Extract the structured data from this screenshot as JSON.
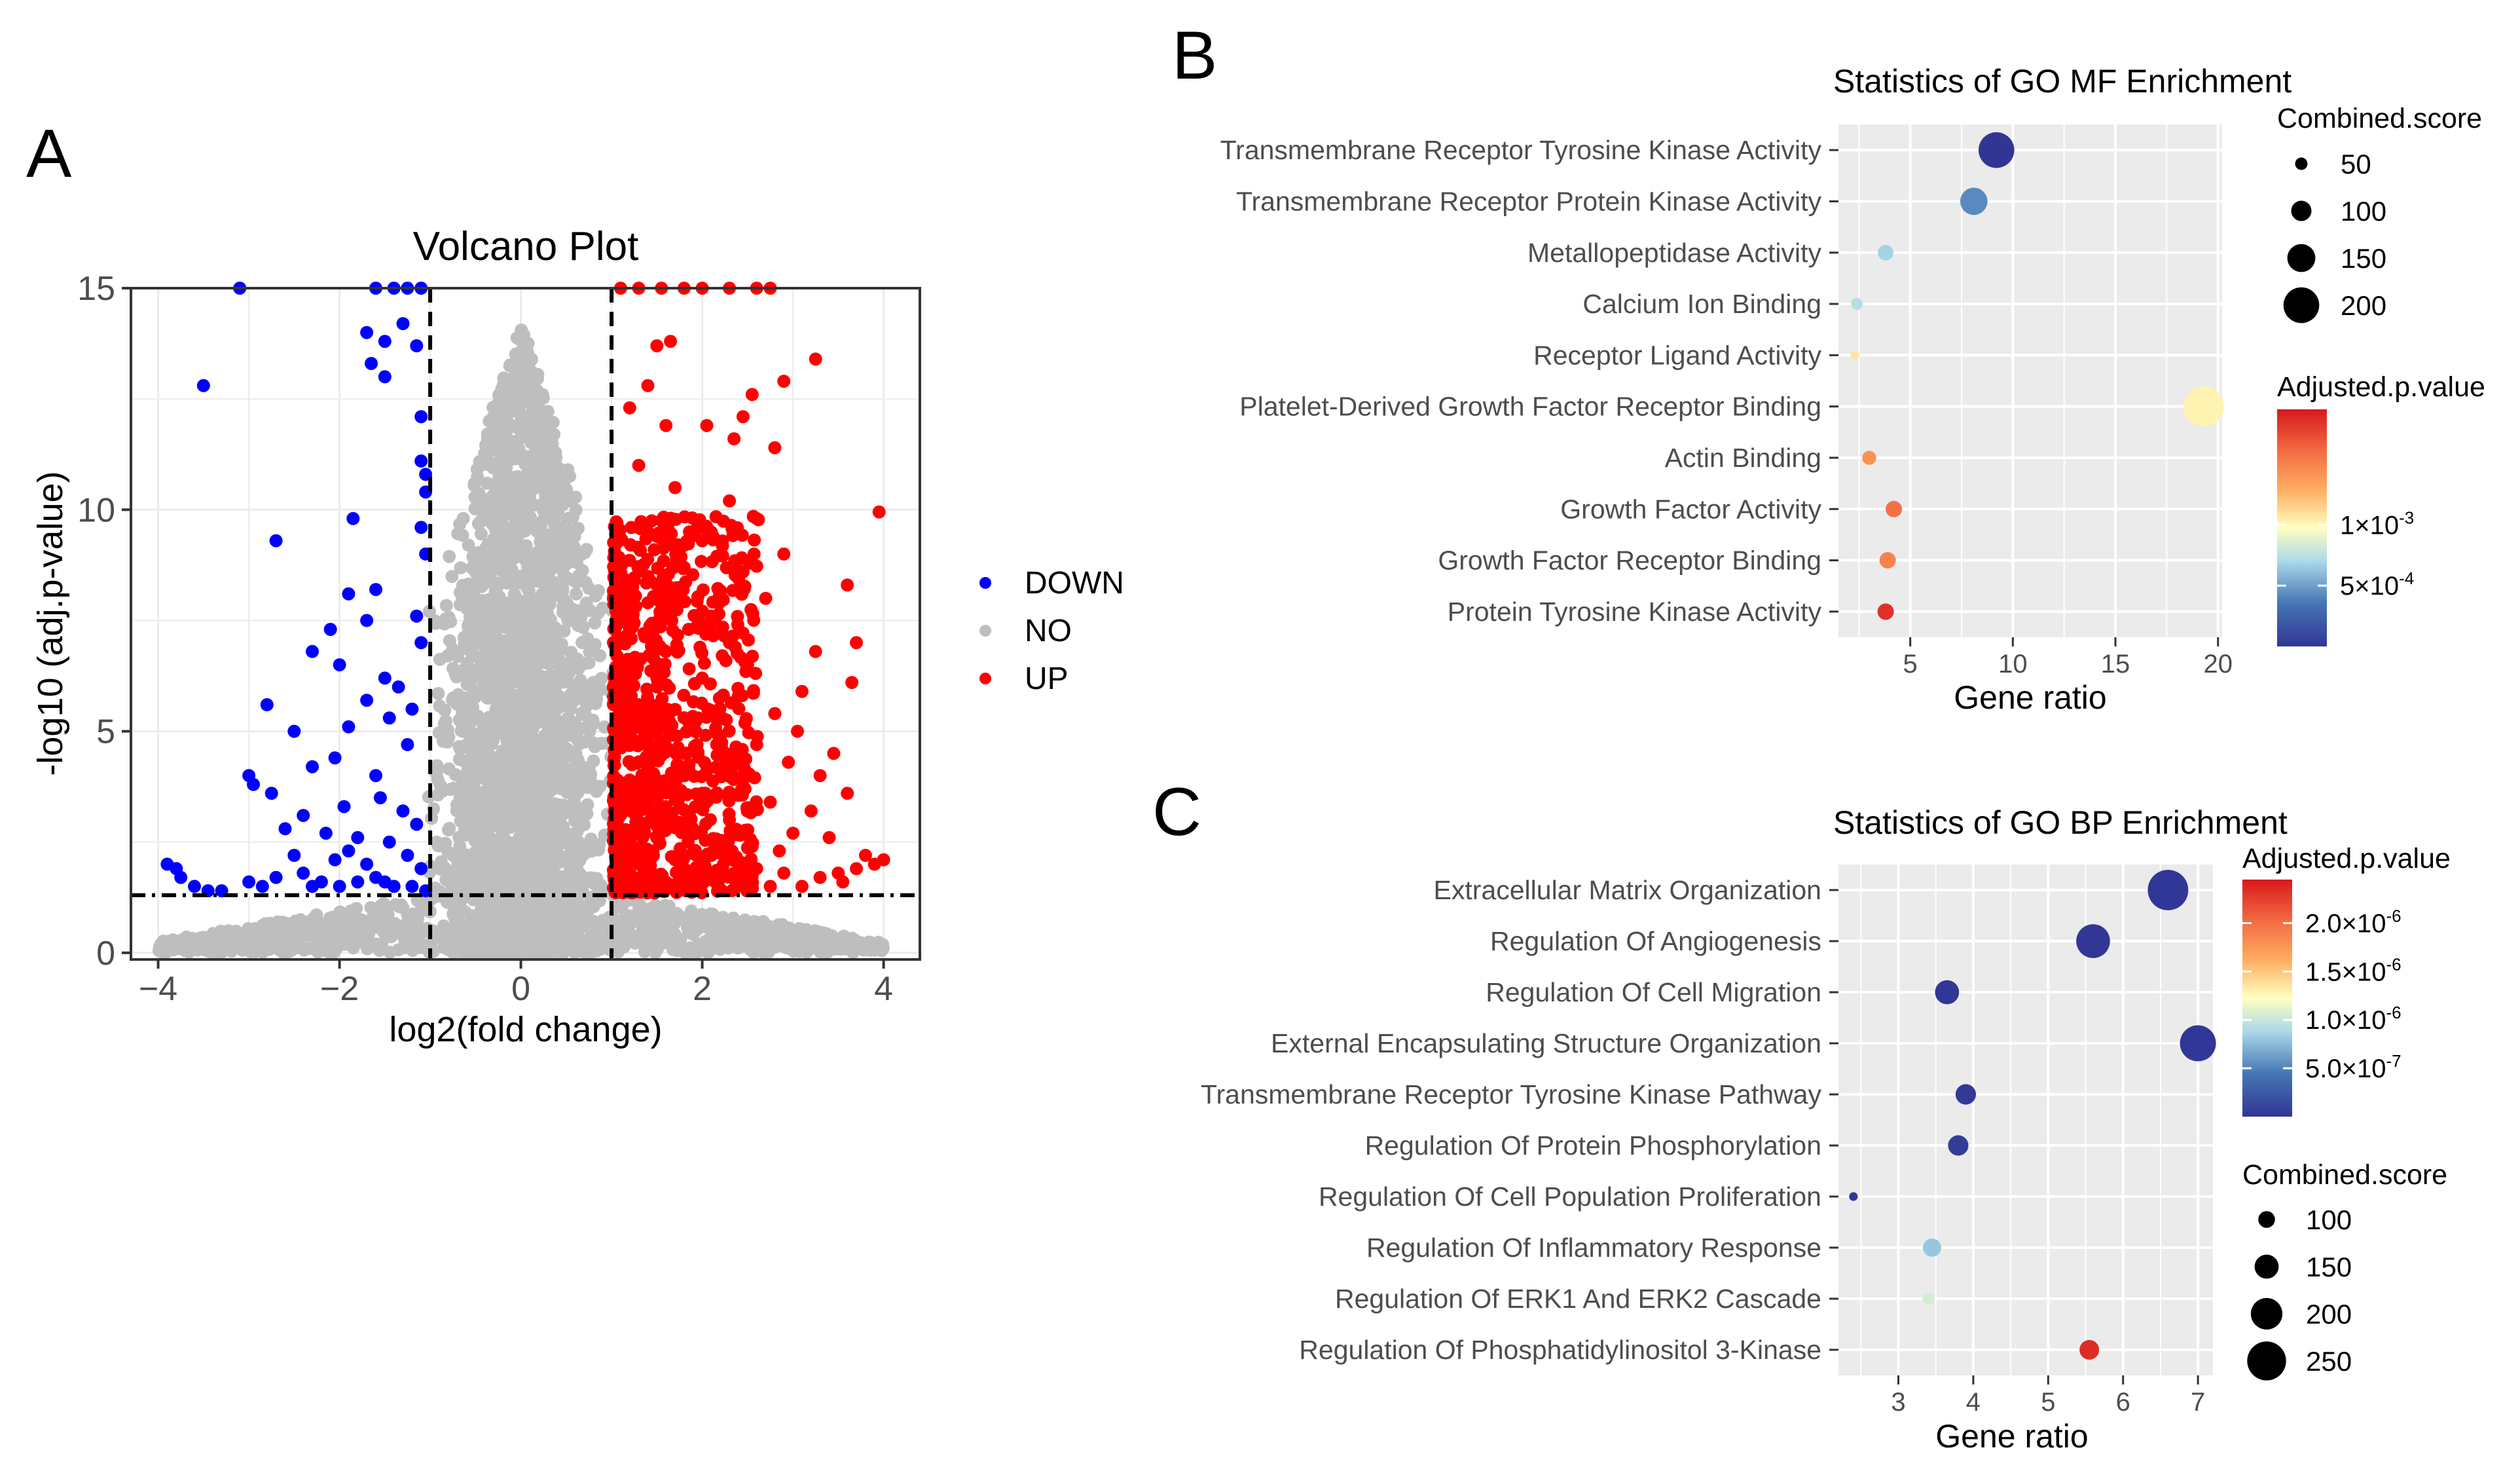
{
  "panels": {
    "a": {
      "letter": "A"
    },
    "b": {
      "letter": "B"
    },
    "c": {
      "letter": "C"
    }
  },
  "chart_data": [
    {
      "id": "volcano",
      "type": "scatter",
      "title": "Volcano Plot",
      "xlabel": "log2(fold change)",
      "ylabel": "-log10 (adj.p-value)",
      "xlim": [
        -4.3,
        4.4
      ],
      "ylim": [
        -0.15,
        15
      ],
      "xticks": [
        -4,
        -2,
        0,
        2,
        4
      ],
      "yticks": [
        0,
        5,
        10,
        15
      ],
      "thresholds": {
        "log2fc": [
          -1,
          1
        ],
        "neg_log10_p": 1.3
      },
      "legend": {
        "position": "right",
        "entries": [
          "DOWN",
          "NO",
          "UP"
        ]
      },
      "colors": {
        "DOWN": "#0000ff",
        "NO": "#bebebe",
        "UP": "#ff0000"
      },
      "series": [
        {
          "name": "DOWN",
          "points": [
            [
              -3.1,
              15
            ],
            [
              -1.6,
              15
            ],
            [
              -1.4,
              15
            ],
            [
              -1.25,
              15
            ],
            [
              -1.1,
              15
            ],
            [
              -3.5,
              12.8
            ],
            [
              -1.7,
              14.0
            ],
            [
              -1.5,
              13.8
            ],
            [
              -1.65,
              13.3
            ],
            [
              -1.5,
              13.0
            ],
            [
              -1.3,
              14.2
            ],
            [
              -1.15,
              13.7
            ],
            [
              -1.1,
              12.1
            ],
            [
              -1.1,
              11.1
            ],
            [
              -1.05,
              10.8
            ],
            [
              -1.05,
              10.4
            ],
            [
              -1.1,
              9.6
            ],
            [
              -1.05,
              9.0
            ],
            [
              -2.7,
              9.3
            ],
            [
              -1.85,
              9.8
            ],
            [
              -1.6,
              8.2
            ],
            [
              -1.9,
              8.1
            ],
            [
              -1.7,
              7.5
            ],
            [
              -2.1,
              7.3
            ],
            [
              -1.15,
              7.6
            ],
            [
              -1.1,
              7.0
            ],
            [
              -2.3,
              6.8
            ],
            [
              -2.0,
              6.5
            ],
            [
              -1.5,
              6.2
            ],
            [
              -1.35,
              6.0
            ],
            [
              -1.7,
              5.7
            ],
            [
              -2.8,
              5.6
            ],
            [
              -1.2,
              5.5
            ],
            [
              -1.45,
              5.3
            ],
            [
              -1.9,
              5.1
            ],
            [
              -2.5,
              5.0
            ],
            [
              -1.25,
              4.7
            ],
            [
              -2.05,
              4.4
            ],
            [
              -2.3,
              4.2
            ],
            [
              -1.6,
              4.0
            ],
            [
              -3.0,
              4.0
            ],
            [
              -2.95,
              3.8
            ],
            [
              -2.75,
              3.6
            ],
            [
              -1.95,
              3.3
            ],
            [
              -2.4,
              3.1
            ],
            [
              -1.55,
              3.5
            ],
            [
              -1.3,
              3.2
            ],
            [
              -1.15,
              2.9
            ],
            [
              -2.6,
              2.8
            ],
            [
              -2.15,
              2.7
            ],
            [
              -1.8,
              2.6
            ],
            [
              -1.45,
              2.5
            ],
            [
              -1.9,
              2.3
            ],
            [
              -2.5,
              2.2
            ],
            [
              -2.05,
              2.1
            ],
            [
              -1.7,
              2.0
            ],
            [
              -1.25,
              2.2
            ],
            [
              -1.1,
              1.9
            ],
            [
              -3.0,
              1.6
            ],
            [
              -2.7,
              1.7
            ],
            [
              -2.4,
              1.8
            ],
            [
              -2.2,
              1.6
            ],
            [
              -1.6,
              1.7
            ],
            [
              -1.4,
              1.5
            ],
            [
              -3.3,
              1.4
            ],
            [
              -3.8,
              1.9
            ],
            [
              -3.9,
              2.0
            ],
            [
              -3.75,
              1.7
            ],
            [
              -3.6,
              1.5
            ],
            [
              -3.45,
              1.4
            ],
            [
              -2.85,
              1.5
            ],
            [
              -2.3,
              1.5
            ],
            [
              -2.0,
              1.5
            ],
            [
              -1.8,
              1.6
            ],
            [
              -1.5,
              1.6
            ],
            [
              -1.2,
              1.5
            ],
            [
              -1.05,
              1.4
            ]
          ]
        },
        {
          "name": "UP",
          "points": [
            [
              1.1,
              15
            ],
            [
              1.3,
              15
            ],
            [
              1.55,
              15
            ],
            [
              1.8,
              15
            ],
            [
              2.0,
              15
            ],
            [
              2.3,
              15
            ],
            [
              2.6,
              15
            ],
            [
              2.75,
              15
            ],
            [
              1.5,
              13.7
            ],
            [
              1.65,
              13.8
            ],
            [
              3.25,
              13.4
            ],
            [
              2.9,
              12.9
            ],
            [
              1.4,
              12.8
            ],
            [
              2.55,
              12.6
            ],
            [
              1.2,
              12.3
            ],
            [
              2.45,
              12.1
            ],
            [
              1.6,
              11.9
            ],
            [
              2.05,
              11.9
            ],
            [
              2.8,
              11.4
            ],
            [
              2.35,
              11.6
            ],
            [
              1.3,
              11.0
            ],
            [
              1.7,
              10.5
            ],
            [
              2.3,
              10.2
            ],
            [
              3.95,
              9.95
            ],
            [
              2.6,
              9.8
            ],
            [
              1.5,
              9.4
            ],
            [
              2.9,
              9.0
            ],
            [
              2.0,
              9.3
            ],
            [
              2.45,
              8.6
            ],
            [
              1.8,
              8.7
            ],
            [
              3.6,
              8.3
            ],
            [
              1.25,
              8.4
            ],
            [
              2.7,
              8.0
            ],
            [
              1.4,
              7.9
            ],
            [
              2.1,
              7.6
            ],
            [
              3.7,
              7.0
            ],
            [
              1.85,
              7.3
            ],
            [
              2.3,
              7.0
            ],
            [
              3.25,
              6.8
            ],
            [
              3.65,
              6.1
            ],
            [
              1.6,
              6.8
            ],
            [
              2.5,
              6.5
            ],
            [
              3.1,
              5.9
            ],
            [
              2.0,
              6.2
            ],
            [
              1.5,
              6.0
            ],
            [
              2.8,
              5.4
            ],
            [
              1.3,
              5.6
            ],
            [
              3.05,
              5.0
            ],
            [
              3.45,
              4.5
            ],
            [
              2.6,
              4.7
            ],
            [
              2.2,
              4.9
            ],
            [
              1.8,
              4.5
            ],
            [
              1.4,
              4.2
            ],
            [
              3.3,
              4.0
            ],
            [
              2.95,
              4.3
            ],
            [
              2.45,
              3.9
            ],
            [
              2.0,
              3.6
            ],
            [
              1.6,
              3.3
            ],
            [
              3.6,
              3.6
            ],
            [
              1.2,
              3.9
            ],
            [
              3.2,
              3.2
            ],
            [
              2.75,
              3.4
            ],
            [
              2.3,
              3.0
            ],
            [
              1.9,
              2.8
            ],
            [
              1.5,
              2.6
            ],
            [
              3.4,
              2.6
            ],
            [
              3.0,
              2.7
            ],
            [
              2.55,
              2.4
            ],
            [
              2.1,
              2.2
            ],
            [
              1.7,
              2.1
            ],
            [
              1.3,
              2.0
            ],
            [
              1.1,
              1.8
            ],
            [
              3.8,
              2.2
            ],
            [
              3.7,
              1.9
            ],
            [
              3.5,
              1.8
            ],
            [
              3.9,
              2.0
            ],
            [
              4.0,
              2.1
            ],
            [
              3.3,
              1.7
            ],
            [
              2.9,
              1.8
            ],
            [
              2.6,
              1.9
            ],
            [
              2.4,
              1.6
            ],
            [
              2.2,
              1.7
            ],
            [
              1.95,
              1.6
            ],
            [
              1.6,
              1.5
            ],
            [
              1.4,
              1.6
            ],
            [
              1.15,
              1.4
            ],
            [
              3.1,
              1.5
            ],
            [
              3.55,
              1.6
            ],
            [
              2.75,
              1.5
            ],
            [
              1.8,
              1.9
            ],
            [
              2.85,
              2.3
            ],
            [
              1.05,
              2.5
            ]
          ]
        }
      ]
    },
    {
      "id": "go-mf",
      "type": "scatter",
      "title": "Statistics of GO MF Enrichment",
      "xlabel": "Gene ratio",
      "ylabel": "",
      "xlim": [
        1.5,
        20.2
      ],
      "xticks": [
        5,
        10,
        15,
        20
      ],
      "categories": [
        "Transmembrane Receptor Tyrosine Kinase Activity",
        "Transmembrane Receptor Protein Kinase Activity",
        "Metallopeptidase Activity",
        "Calcium Ion Binding",
        "Receptor Ligand Activity",
        "Platelet-Derived Growth Factor Receptor Binding",
        "Actin Binding",
        "Growth Factor Activity",
        "Growth Factor Receptor Binding",
        "Protein Tyrosine Kinase Activity"
      ],
      "values": [
        9.2,
        8.1,
        3.8,
        2.4,
        2.3,
        19.3,
        3.0,
        4.2,
        3.9,
        3.8
      ],
      "combined_score": [
        200,
        145,
        70,
        45,
        25,
        230,
        60,
        75,
        75,
        75
      ],
      "adjusted_p": [
        0.0,
        0.00042,
        0.00068,
        0.00074,
        0.00108,
        0.00102,
        0.00142,
        0.00158,
        0.0015,
        0.00185
      ],
      "legend": {
        "size_title": "Combined.score",
        "size_breaks": [
          50,
          100,
          150,
          200
        ],
        "color_title": "Adjusted.p.value",
        "color_range": [
          0.0,
          0.00195
        ],
        "color_breaks": [
          {
            "label": "1×10",
            "exp": "-3",
            "value": 0.001
          },
          {
            "label": "5×10",
            "exp": "-4",
            "value": 0.0005
          }
        ]
      }
    },
    {
      "id": "go-bp",
      "type": "scatter",
      "title": "Statistics of GO BP Enrichment",
      "xlabel": "Gene ratio",
      "ylabel": "",
      "xlim": [
        2.2,
        7.2
      ],
      "xticks": [
        3,
        4,
        5,
        6,
        7
      ],
      "categories": [
        "Extracellular Matrix Organization",
        "Regulation Of Angiogenesis",
        "Regulation Of Cell Migration",
        "External Encapsulating Structure Organization",
        "Transmembrane Receptor Tyrosine Kinase Pathway",
        "Regulation Of Protein Phosphorylation",
        "Regulation Of Cell Population Proliferation",
        "Regulation Of Inflammatory Response",
        "Regulation Of ERK1 And ERK2 Cascade",
        "Regulation Of Phosphatidylinositol 3-Kinase"
      ],
      "values": [
        6.6,
        5.6,
        3.65,
        7.0,
        3.9,
        3.8,
        2.4,
        3.45,
        3.4,
        5.55
      ],
      "combined_score": [
        260,
        215,
        150,
        230,
        125,
        125,
        45,
        110,
        70,
        120
      ],
      "adjusted_p": [
        1e-08,
        1e-08,
        1e-08,
        1e-08,
        2e-08,
        5e-08,
        1e-08,
        8e-07,
        1.05e-06,
        2.35e-06
      ],
      "legend": {
        "size_title": "Combined.score",
        "size_breaks": [
          100,
          150,
          200,
          250
        ],
        "color_title": "Adjusted.p.value",
        "color_range": [
          0.0,
          2.45e-06
        ],
        "color_breaks": [
          {
            "label": "2.0×10",
            "exp": "-6",
            "value": 2e-06
          },
          {
            "label": "1.5×10",
            "exp": "-6",
            "value": 1.5e-06
          },
          {
            "label": "1.0×10",
            "exp": "-6",
            "value": 1e-06
          },
          {
            "label": "5.0×10",
            "exp": "-7",
            "value": 5e-07
          }
        ]
      }
    }
  ]
}
